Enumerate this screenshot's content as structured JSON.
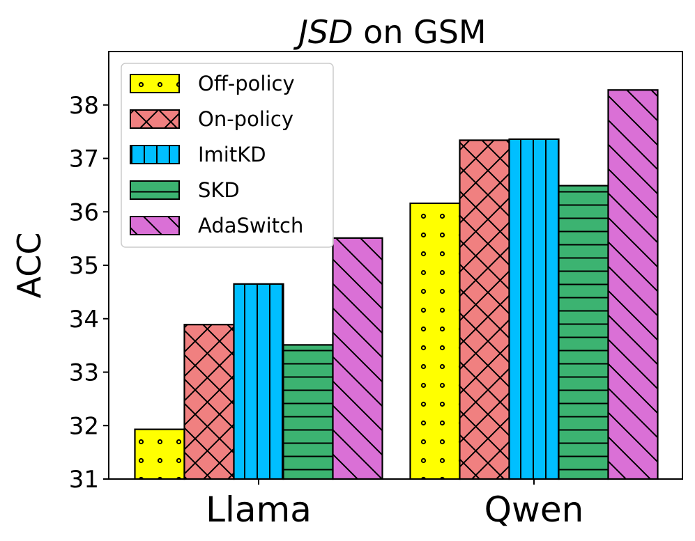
{
  "chart_data": {
    "type": "bar",
    "title_italic": "JSD",
    "title_rest": " on GSM",
    "xlabel": "",
    "ylabel": "ACC",
    "ylim": [
      31,
      39
    ],
    "yticks": [
      "31",
      "32",
      "33",
      "34",
      "35",
      "36",
      "37",
      "38"
    ],
    "categories": [
      "Llama",
      "Qwen"
    ],
    "legend_position": "top-left",
    "series": [
      {
        "name": "Off-policy",
        "values": [
          31.93,
          36.16
        ],
        "color": "#ffff00",
        "hatch": "dots"
      },
      {
        "name": "On-policy",
        "values": [
          33.89,
          37.34
        ],
        "color": "#f08080",
        "hatch": "cross"
      },
      {
        "name": "ImitKD",
        "values": [
          34.65,
          37.36
        ],
        "color": "#00bfff",
        "hatch": "vertical"
      },
      {
        "name": "SKD",
        "values": [
          33.51,
          36.49
        ],
        "color": "#3cb371",
        "hatch": "horizontal"
      },
      {
        "name": "AdaSwitch",
        "values": [
          35.51,
          38.28
        ],
        "color": "#da70d6",
        "hatch": "diagonal"
      }
    ]
  }
}
